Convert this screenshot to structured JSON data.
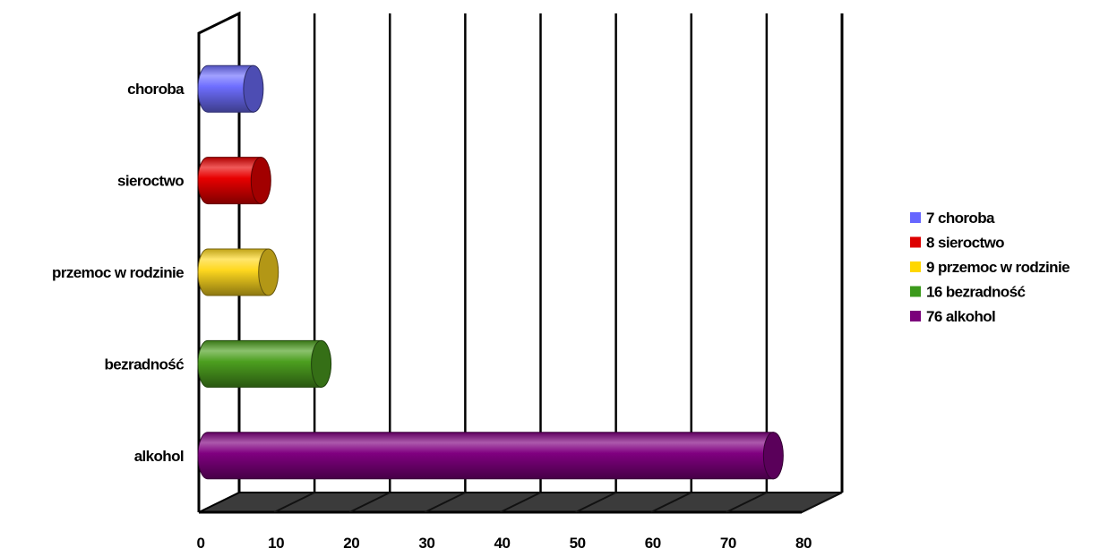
{
  "chart_data": {
    "type": "bar",
    "orientation": "horizontal",
    "style": "3d-cylinder",
    "title": "",
    "xlabel": "",
    "ylabel": "",
    "xlim": [
      0,
      80
    ],
    "x_ticks": [
      "0",
      "10",
      "20",
      "30",
      "40",
      "50",
      "60",
      "70",
      "80"
    ],
    "grid": true,
    "legend_position": "right",
    "categories": [
      "alkohol",
      "bezradność",
      "przemoc w rodzinie",
      "sieroctwo",
      "choroba"
    ],
    "values": [
      76,
      16,
      9,
      8,
      7
    ],
    "colors": [
      "#800080",
      "#4c9f1f",
      "#ffd81f",
      "#e80000",
      "#6e6eff"
    ],
    "legend": [
      {
        "label": "7 choroba",
        "color": "#6666ff"
      },
      {
        "label": "8 sieroctwo",
        "color": "#dd0000"
      },
      {
        "label": "9 przemoc w rodzinie",
        "color": "#ffd700"
      },
      {
        "label": "16 bezradność",
        "color": "#3c9a1c"
      },
      {
        "label": "76 alkohol",
        "color": "#7b007b"
      }
    ]
  }
}
